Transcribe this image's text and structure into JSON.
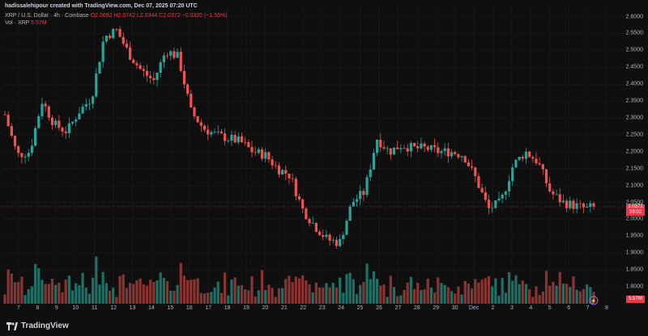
{
  "header": {
    "credit": "hadissalehipour created with TradingView.com, Dec 07, 2025 07:20 UTC",
    "symbol": "XRP / U.S. Dollar · 4h · Coinbase",
    "ohlc": "O2.0692 H2.0742 L2.0344 C2.0372 −0.0320 (−1.55%)",
    "volume_label": "Vol · XRP",
    "volume_value": "5.57M"
  },
  "price_tag": {
    "price": "2.0372",
    "countdown": "39:02"
  },
  "volume_tag": "5.57M",
  "brand": "TradingView",
  "colors": {
    "up": "#26a69a",
    "down": "#ef5350",
    "background": "#0f0f0f",
    "grid": "#1c1c1c"
  },
  "chart_data": {
    "type": "candlestick",
    "interval": "4h",
    "yaxis": {
      "range": [
        1.75,
        2.63
      ],
      "ticks": [
        "2.6000",
        "2.5500",
        "2.5000",
        "2.4500",
        "2.4000",
        "2.3500",
        "2.3000",
        "2.2500",
        "2.2000",
        "2.1500",
        "2.1000",
        "2.0500",
        "2.0000",
        "1.9500",
        "1.9000",
        "1.8500",
        "1.8000"
      ]
    },
    "xaxis": {
      "labels": [
        "7",
        "8",
        "9",
        "10",
        "11",
        "12",
        "13",
        "14",
        "15",
        "16",
        "17",
        "18",
        "19",
        "20",
        "21",
        "22",
        "23",
        "24",
        "25",
        "26",
        "27",
        "28",
        "29",
        "30",
        "Dec",
        "2",
        "3",
        "4",
        "5",
        "6",
        "7",
        "8"
      ]
    },
    "price_series": [
      [
        0,
        2.31
      ],
      [
        1,
        2.19
      ],
      [
        2,
        2.2
      ],
      [
        3,
        2.35
      ],
      [
        4,
        2.28
      ],
      [
        5,
        2.26
      ],
      [
        6,
        2.32
      ],
      [
        7,
        2.36
      ],
      [
        8,
        2.54
      ],
      [
        9,
        2.56
      ],
      [
        10,
        2.49
      ],
      [
        11,
        2.44
      ],
      [
        12,
        2.41
      ],
      [
        13,
        2.5
      ],
      [
        14,
        2.48
      ],
      [
        15,
        2.32
      ],
      [
        16,
        2.27
      ],
      [
        17,
        2.25
      ],
      [
        18,
        2.24
      ],
      [
        19,
        2.23
      ],
      [
        20,
        2.2
      ],
      [
        21,
        2.19
      ],
      [
        22,
        2.15
      ],
      [
        23,
        2.13
      ],
      [
        24,
        2.03
      ],
      [
        25,
        1.98
      ],
      [
        26,
        1.94
      ],
      [
        27,
        1.93
      ],
      [
        28,
        2.05
      ],
      [
        29,
        2.08
      ],
      [
        30,
        2.24
      ],
      [
        31,
        2.2
      ],
      [
        32,
        2.22
      ],
      [
        33,
        2.21
      ],
      [
        34,
        2.21
      ],
      [
        35,
        2.2
      ],
      [
        36,
        2.2
      ],
      [
        37,
        2.19
      ],
      [
        38,
        2.12
      ],
      [
        39,
        2.03
      ],
      [
        40,
        2.05
      ],
      [
        41,
        2.16
      ],
      [
        42,
        2.2
      ],
      [
        43,
        2.17
      ],
      [
        44,
        2.08
      ],
      [
        45,
        2.05
      ],
      [
        46,
        2.04
      ],
      [
        47,
        2.03
      ],
      [
        47.5,
        2.04
      ]
    ],
    "price_tag_value": 2.0372
  }
}
